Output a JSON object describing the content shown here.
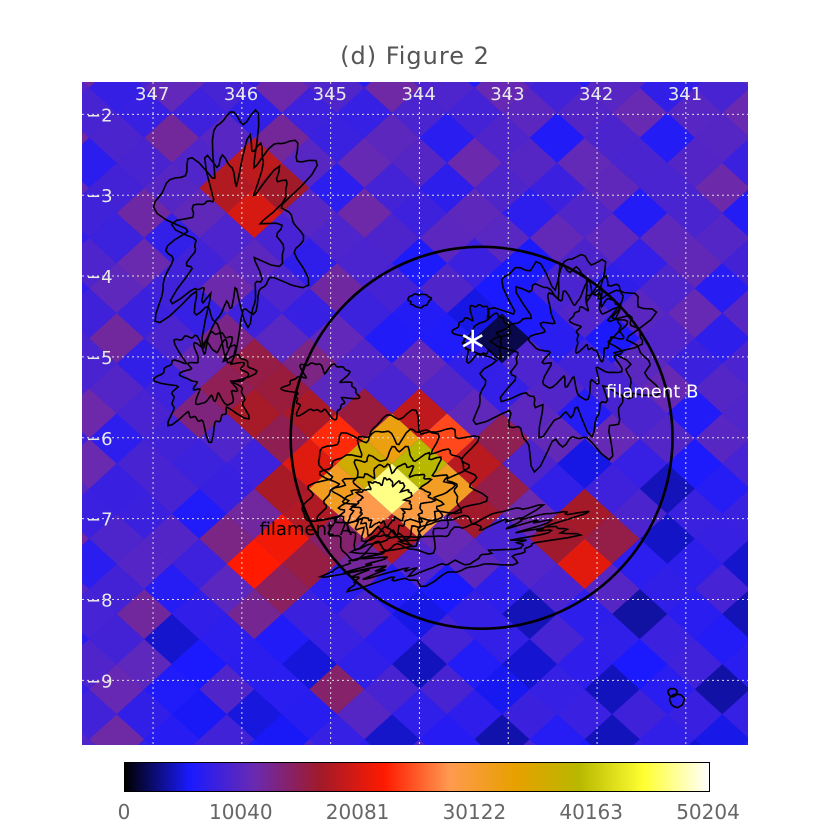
{
  "title": "(d) Figure 2",
  "chart_data": {
    "type": "heatmap",
    "title": "(d) Figure 2",
    "x_ticks": [
      "347",
      "346",
      "345",
      "344",
      "343",
      "342",
      "341"
    ],
    "y_ticks": [
      "-2",
      "-3",
      "-4",
      "-5",
      "-6",
      "-7",
      "-8",
      "-9"
    ],
    "xlim": [
      347.8,
      340.3
    ],
    "ylim": [
      -9.8,
      -1.6
    ],
    "grid": true,
    "colorbar": {
      "colormap": [
        "#000000",
        "#1a1aff",
        "#6a2ab0",
        "#a01a2a",
        "#ff1a00",
        "#ff9a50",
        "#e8a000",
        "#b8b800",
        "#ffff33",
        "#ffffff"
      ],
      "ticks": [
        "0",
        "10040",
        "20081",
        "30122",
        "40163",
        "50204"
      ],
      "range": [
        0,
        50204
      ]
    },
    "annotations": [
      {
        "text": "filament A",
        "x": 345.8,
        "y": -7.2
      },
      {
        "text": "filament B",
        "x": 341.9,
        "y": -5.5
      }
    ],
    "marker": {
      "symbol": "asterisk",
      "x": 343.4,
      "y": -4.8
    },
    "circle": {
      "center_x": 343.3,
      "center_y": -6.0,
      "radius_deg": 2.15
    },
    "peak_region": {
      "x": 344.3,
      "y": -6.5,
      "value": 50204
    }
  }
}
